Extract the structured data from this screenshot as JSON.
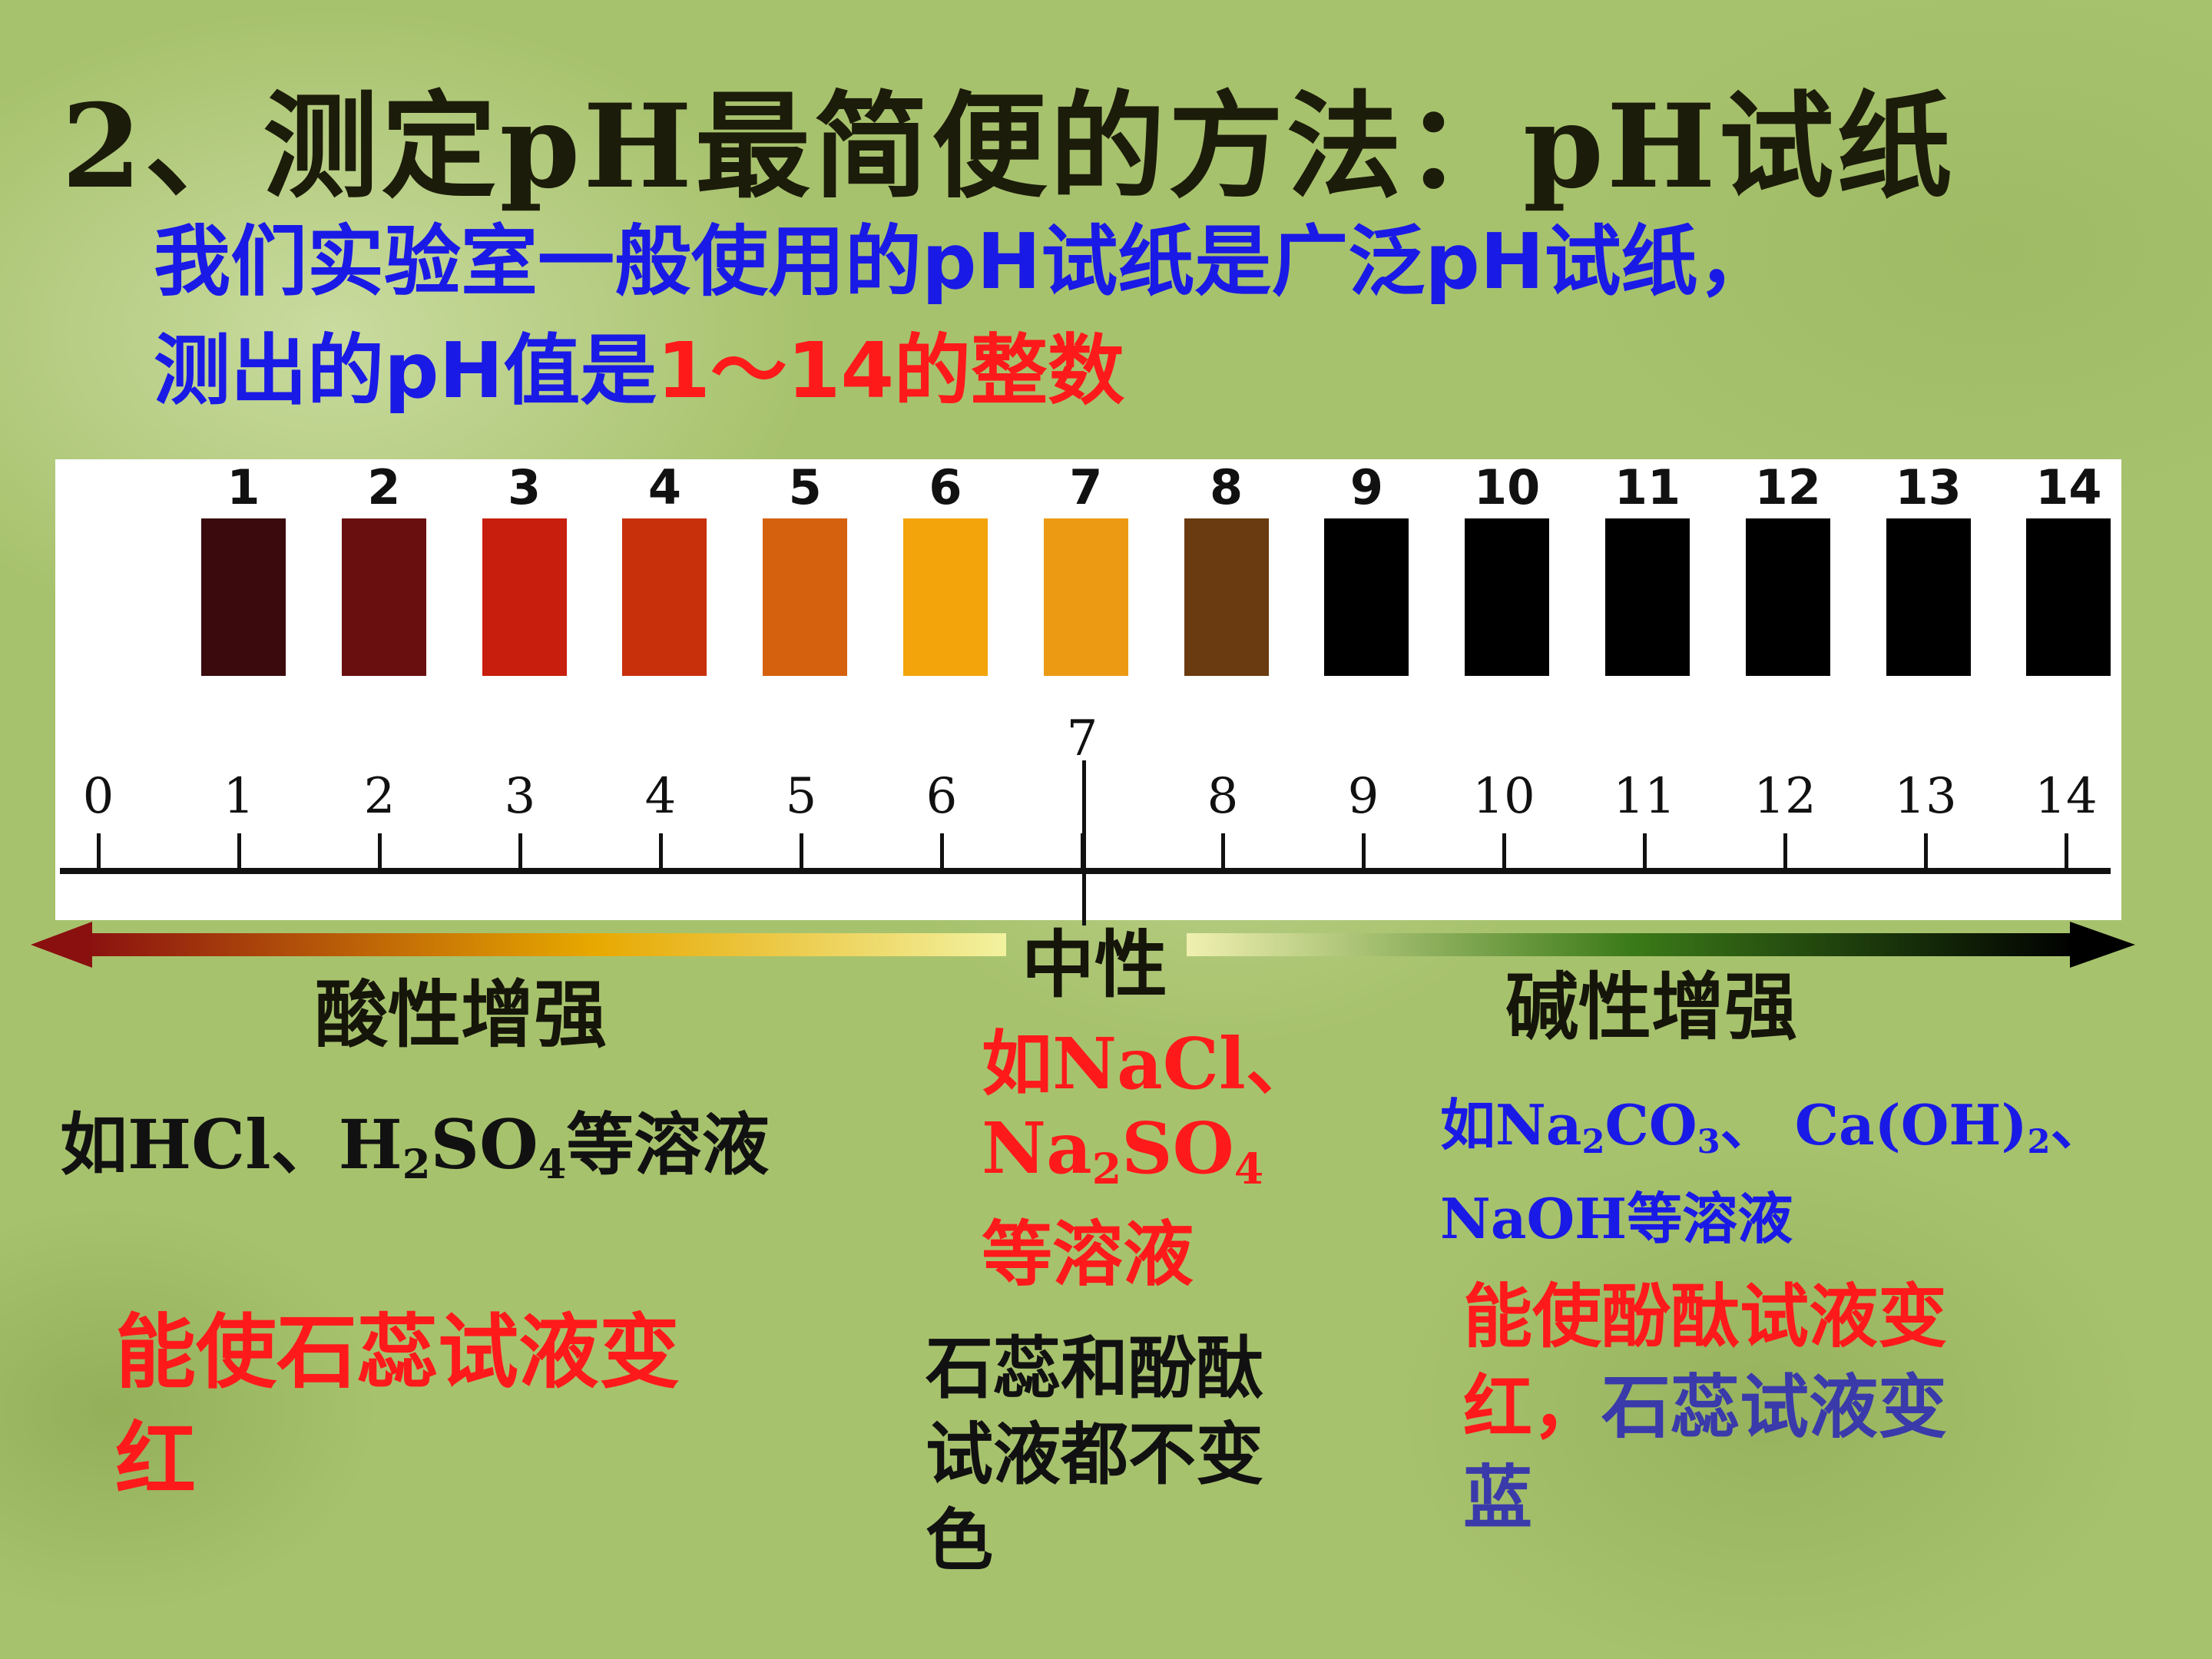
{
  "title": "2、测定pH最简便的方法：pH试纸",
  "subtitle": {
    "line1": "我们实验室一般使用的pH试纸是广泛pH试纸，",
    "line2_prefix": "测出的pH值是",
    "line2_highlight": "1～14的整数"
  },
  "chart_data": {
    "type": "table",
    "strip_labels": [
      "1",
      "2",
      "3",
      "4",
      "5",
      "6",
      "7",
      "8",
      "9",
      "10",
      "11",
      "12",
      "13",
      "14"
    ],
    "strip_colors": [
      "#3a0a0c",
      "#6a0f10",
      "#c81e0e",
      "#c8300c",
      "#d5600e",
      "#f2a40a",
      "#ec9a14",
      "#6a3a10",
      "#000000",
      "#000000",
      "#000000",
      "#000000",
      "#000000",
      "#000000"
    ],
    "scale_ticks": [
      "0",
      "1",
      "2",
      "3",
      "4",
      "5",
      "6",
      "7",
      "8",
      "9",
      "10",
      "11",
      "12",
      "13",
      "14"
    ]
  },
  "arrows": {
    "left_colors": [
      "#8a1010",
      "#e7a800",
      "#f2f2a0"
    ],
    "right_colors": [
      "#f0f0b0",
      "#3b7a18",
      "#000000"
    ]
  },
  "labels": {
    "neutral": "中性",
    "acid": "酸性增强",
    "base": "碱性增强"
  },
  "acid_example": {
    "prefix": "如HCl、H",
    "sub1": "2",
    "mid": "SO",
    "sub2": "4",
    "suffix": "等溶液"
  },
  "neutral_example": {
    "line1": "如NaCl、",
    "l2_a": "Na",
    "l2_sub1": "2",
    "l2_b": "SO",
    "l2_sub2": "4",
    "line3": "等溶液"
  },
  "base_example": {
    "l1_a": "如Na",
    "l1_sub1": "2",
    "l1_b": "CO",
    "l1_sub2": "3",
    "l1_c": "、 Ca(OH)",
    "l1_sub3": "2",
    "l1_d": "、",
    "line2": "NaOH等溶液"
  },
  "acid_effect": {
    "line1": "能使石蕊试液变",
    "line2": "红"
  },
  "neutral_effect": {
    "line1": "石蕊和酚酞",
    "line2": "试液都不变",
    "line3": "色"
  },
  "base_effect": {
    "line1": "能使酚酞试液变",
    "line2_red": "红",
    "line2_comma": "，",
    "line2_blue": "石蕊试液变",
    "line3": "蓝"
  }
}
